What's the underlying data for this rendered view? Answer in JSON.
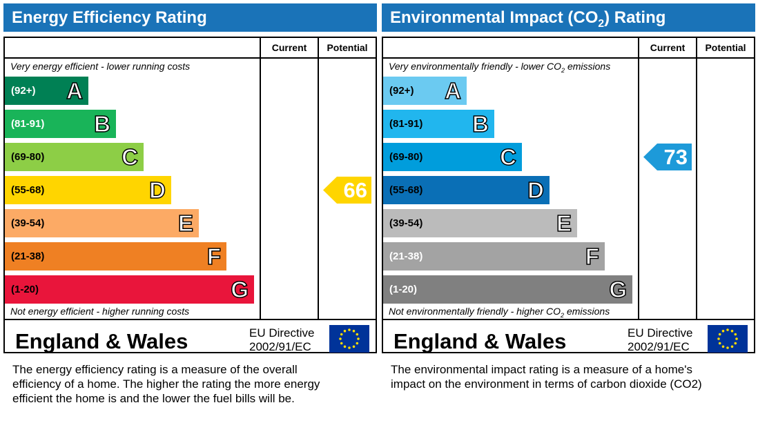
{
  "chart_data": [
    {
      "type": "bar",
      "title": "Energy Efficiency Rating",
      "columns": [
        "Current",
        "Potential"
      ],
      "top_note": "Very energy efficient - lower running costs",
      "bottom_note": "Not energy efficient - higher running costs",
      "bands": [
        {
          "range": "(92+)",
          "letter": "A",
          "color": "#008054",
          "text_color": "#ffffff"
        },
        {
          "range": "(81-91)",
          "letter": "B",
          "color": "#19b459",
          "text_color": "#ffffff"
        },
        {
          "range": "(69-80)",
          "letter": "C",
          "color": "#8dce46",
          "text_color": "#000000"
        },
        {
          "range": "(55-68)",
          "letter": "D",
          "color": "#ffd500",
          "text_color": "#000000"
        },
        {
          "range": "(39-54)",
          "letter": "E",
          "color": "#fcaa65",
          "text_color": "#000000"
        },
        {
          "range": "(21-38)",
          "letter": "F",
          "color": "#ef8023",
          "text_color": "#000000"
        },
        {
          "range": "(1-20)",
          "letter": "G",
          "color": "#e9153b",
          "text_color": "#000000"
        }
      ],
      "current": null,
      "potential": 66,
      "potential_color": "#ffd500",
      "footer_title": "England & Wales",
      "directive_line1": "EU Directive",
      "directive_line2": "2002/91/EC",
      "description": [
        "The energy efficiency rating is a measure of the overall",
        "efficiency of a home.  The higher the rating the more energy",
        "efficient the home is and the lower the fuel bills will be."
      ]
    },
    {
      "type": "bar",
      "title": "Environmental Impact (CO2) Rating",
      "columns": [
        "Current",
        "Potential"
      ],
      "top_note": "Very environmentally friendly - lower CO2 emissions",
      "bottom_note": "Not environmentally friendly - higher CO2 emissions",
      "bands": [
        {
          "range": "(92+)",
          "letter": "A",
          "color": "#6bcaf1",
          "text_color": "#000000"
        },
        {
          "range": "(81-91)",
          "letter": "B",
          "color": "#21b6ee",
          "text_color": "#000000"
        },
        {
          "range": "(69-80)",
          "letter": "C",
          "color": "#009ddc",
          "text_color": "#000000"
        },
        {
          "range": "(55-68)",
          "letter": "D",
          "color": "#0a6fb6",
          "text_color": "#000000"
        },
        {
          "range": "(39-54)",
          "letter": "E",
          "color": "#bbbbbb",
          "text_color": "#000000"
        },
        {
          "range": "(21-38)",
          "letter": "F",
          "color": "#a3a3a3",
          "text_color": "#ffffff"
        },
        {
          "range": "(1-20)",
          "letter": "G",
          "color": "#808080",
          "text_color": "#ffffff"
        }
      ],
      "current": 73,
      "current_color": "#1d9ad9",
      "potential": null,
      "footer_title": "England & Wales",
      "directive_line1": "EU Directive",
      "directive_line2": "2002/91/EC",
      "description": [
        "The environmental impact rating is a measure of a home's",
        "impact on the environment in terms of carbon dioxide (CO2)"
      ]
    }
  ]
}
